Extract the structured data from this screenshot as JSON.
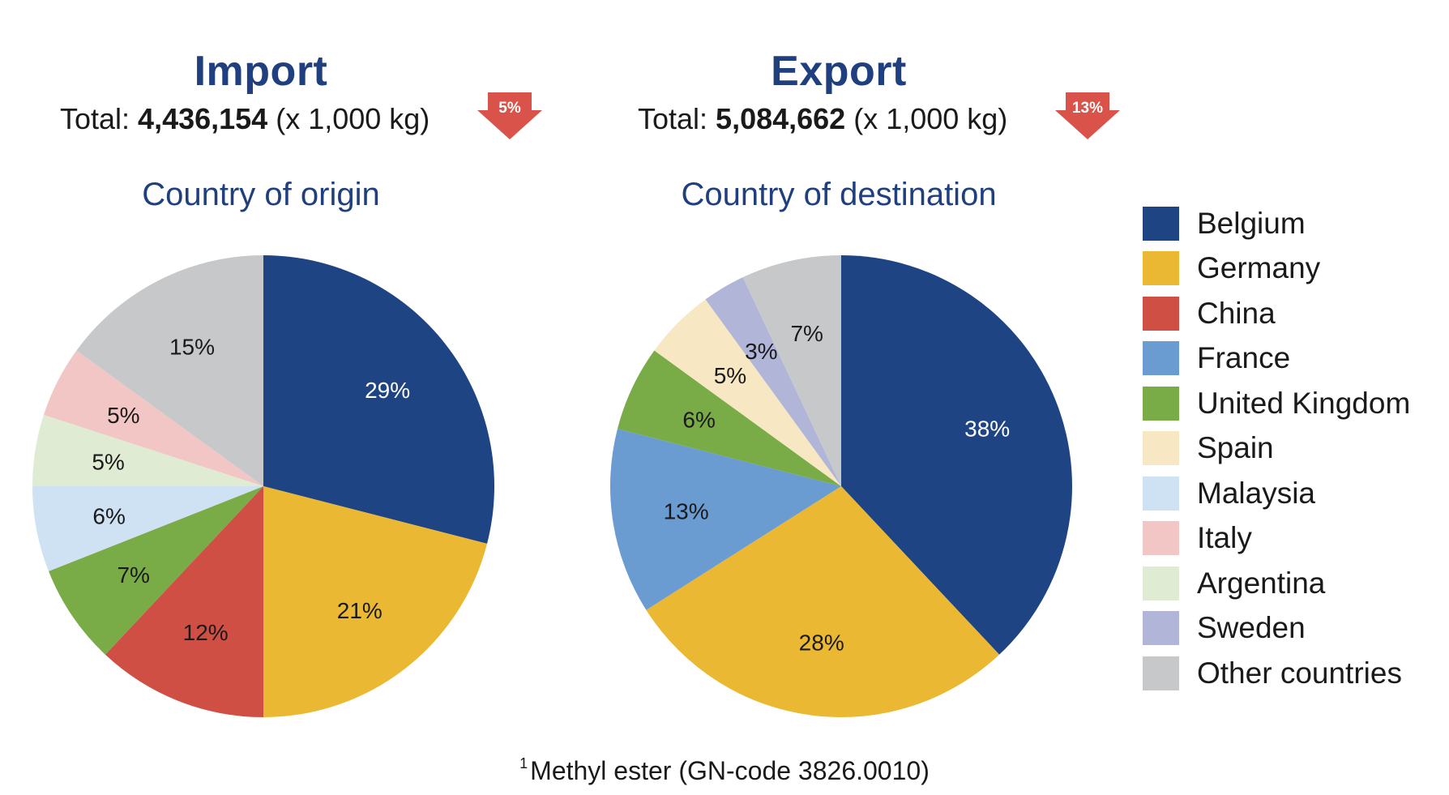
{
  "import": {
    "title": "Import",
    "total_prefix": "Total: ",
    "total_value": "4,436,154",
    "total_suffix": " (x 1,000 kg)",
    "change_badge": "5%",
    "subtitle": "Country of origin"
  },
  "export": {
    "title": "Export",
    "total_prefix": "Total: ",
    "total_value": "5,084,662",
    "total_suffix": " (x 1,000 kg)",
    "change_badge": "13%",
    "subtitle": "Country of destination"
  },
  "badge_color": "#d9534a",
  "colors": {
    "Belgium": "#1f4484",
    "Germany": "#ebb834",
    "China": "#cf4f45",
    "France": "#6a9bd1",
    "United Kingdom": "#79ac46",
    "Spain": "#f7e8c3",
    "Malaysia": "#cfe2f3",
    "Italy": "#f1c6c4",
    "Argentina": "#dfecd3",
    "Sweden": "#b1b6d8",
    "Other countries": "#c7c8ca"
  },
  "legend": [
    "Belgium",
    "Germany",
    "China",
    "France",
    "United Kingdom",
    "Spain",
    "Malaysia",
    "Italy",
    "Argentina",
    "Sweden",
    "Other countries"
  ],
  "chart_data": [
    {
      "type": "pie",
      "title": "Country of origin",
      "series": "Import",
      "labels": [
        "Belgium",
        "Germany",
        "China",
        "United Kingdom",
        "Malaysia",
        "Argentina",
        "Italy",
        "Other countries"
      ],
      "values": [
        29,
        21,
        12,
        7,
        6,
        5,
        5,
        15
      ],
      "value_labels": [
        "29%",
        "21%",
        "12%",
        "7%",
        "6%",
        "5%",
        "5%",
        "15%"
      ]
    },
    {
      "type": "pie",
      "title": "Country of destination",
      "series": "Export",
      "labels": [
        "Belgium",
        "Germany",
        "France",
        "United Kingdom",
        "Spain",
        "Sweden",
        "Other countries"
      ],
      "values": [
        38,
        28,
        13,
        6,
        5,
        3,
        7
      ],
      "value_labels": [
        "38%",
        "28%",
        "13%",
        "6%",
        "5%",
        "3%",
        "7%"
      ]
    }
  ],
  "footnote": {
    "marker": "1",
    "text": "Methyl ester (GN-code 3826.0010)"
  }
}
